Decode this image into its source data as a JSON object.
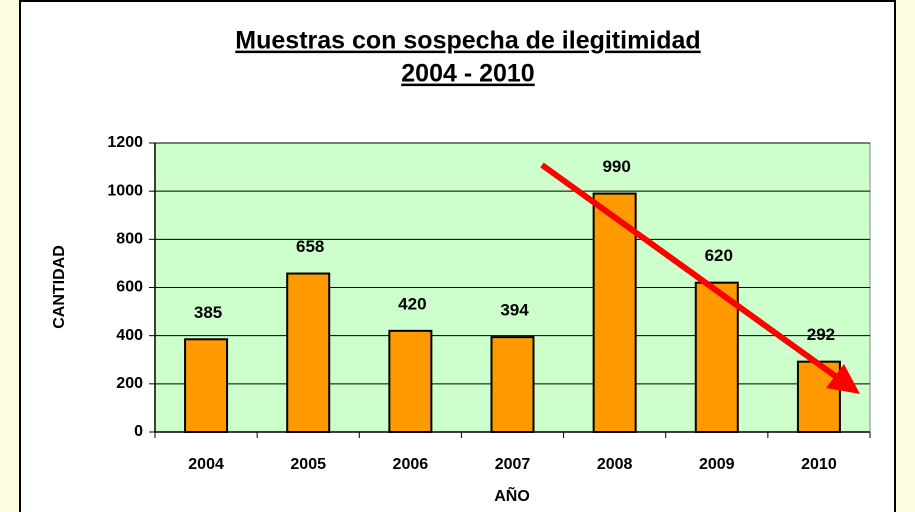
{
  "chart_data": {
    "type": "bar",
    "title": "Muestras con sospecha de ilegitimidad",
    "subtitle": "2004 - 2010",
    "x_label": "AÑO",
    "y_label": "CANTIDAD",
    "categories": [
      "2004",
      "2005",
      "2006",
      "2007",
      "2008",
      "2009",
      "2010"
    ],
    "values": [
      385,
      658,
      420,
      394,
      990,
      620,
      292
    ],
    "color": "#ff9900",
    "plot_background": "#ccffcc",
    "ylim": [
      0,
      1200
    ],
    "yticks": [
      0,
      200,
      400,
      600,
      800,
      1000,
      1200
    ],
    "grid": true
  }
}
